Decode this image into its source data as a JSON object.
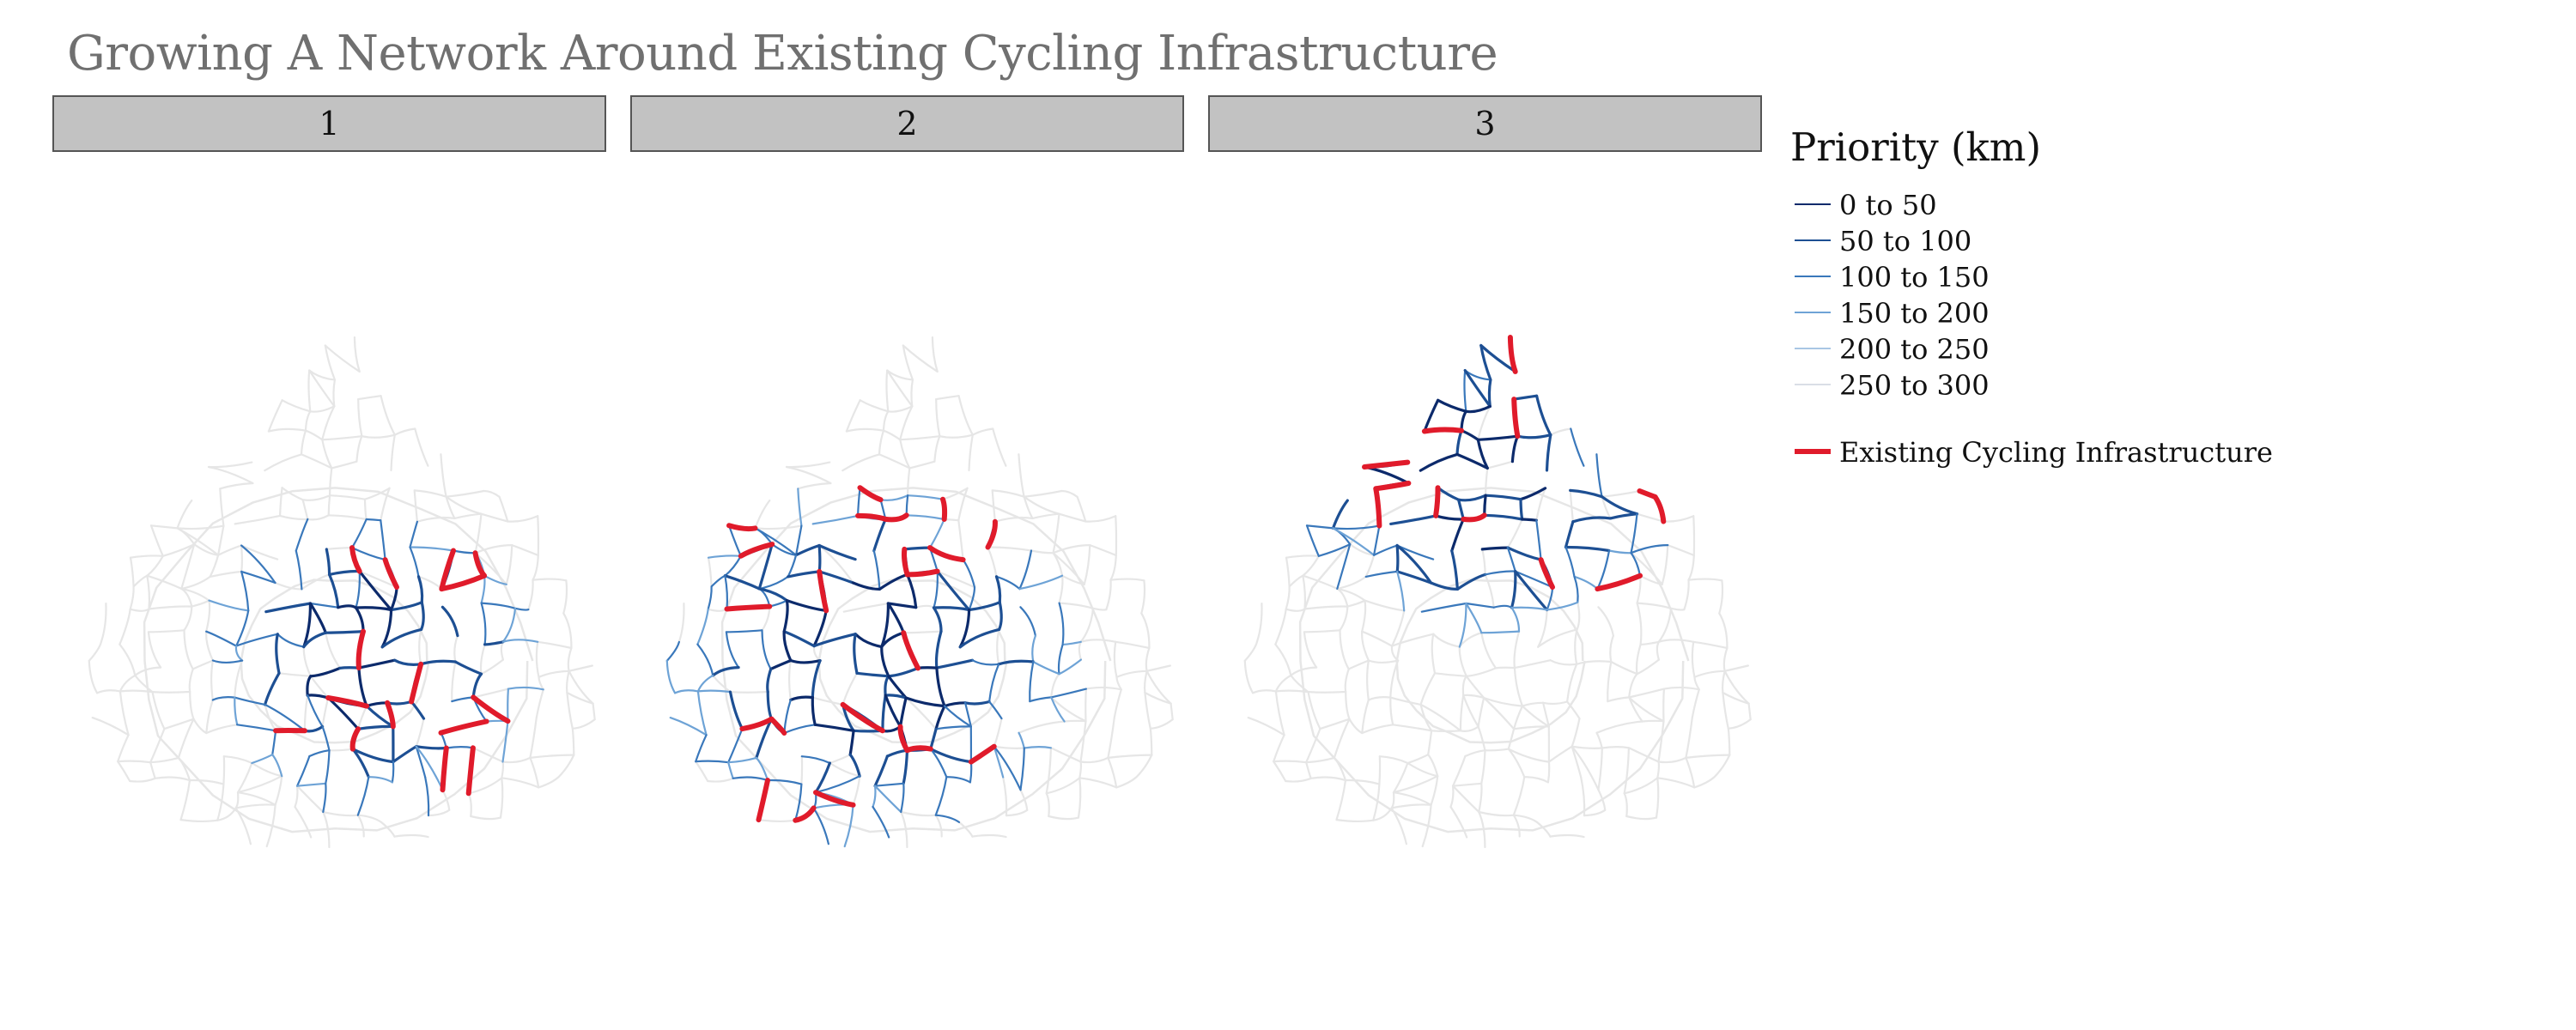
{
  "title": "Growing A Network Around Existing Cycling Infrastructure",
  "panels": [
    {
      "label": "1",
      "highlight_region": "south-centre"
    },
    {
      "label": "2",
      "highlight_region": "south-west"
    },
    {
      "label": "3",
      "highlight_region": "north"
    }
  ],
  "legend": {
    "title": "Priority (km)",
    "items": [
      {
        "label": "0 to 50",
        "color": "#0c2a6b"
      },
      {
        "label": "50 to 100",
        "color": "#1d4f93"
      },
      {
        "label": "100 to 150",
        "color": "#3a78bb"
      },
      {
        "label": "150 to 200",
        "color": "#6ea3d6"
      },
      {
        "label": "200 to 250",
        "color": "#a9c6e4"
      },
      {
        "label": "250 to 300",
        "color": "#dadee6"
      }
    ],
    "existing": {
      "label": "Existing Cycling Infrastructure",
      "color": "#e01b2b"
    }
  },
  "colors": {
    "base_network": "#e6e6e6",
    "title_gray": "#707070",
    "header_fill": "#c2c2c2"
  }
}
